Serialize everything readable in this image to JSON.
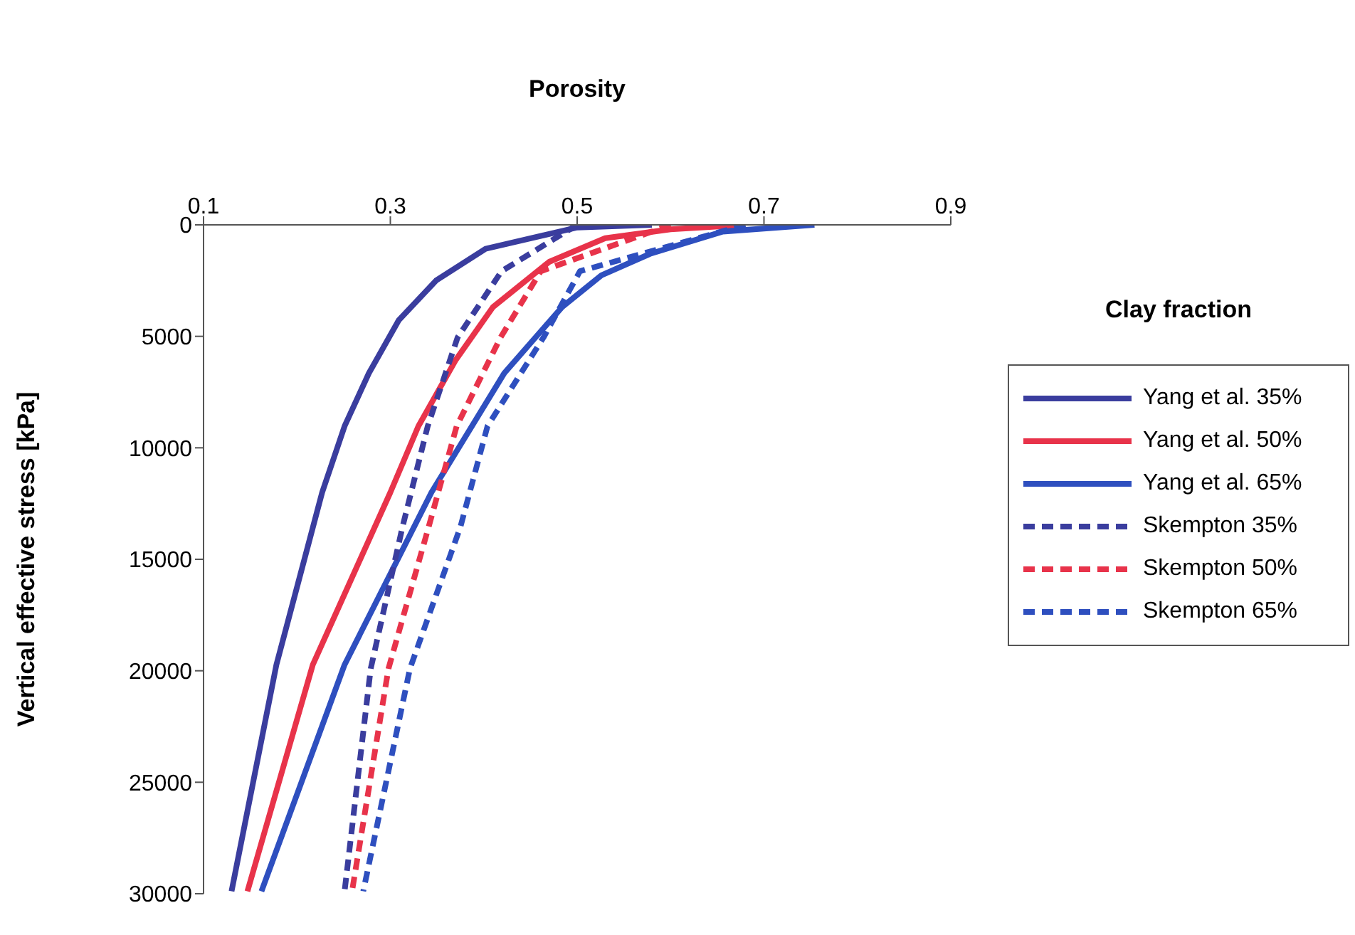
{
  "chart_data": {
    "type": "line",
    "xlabel": "Porosity",
    "ylabel": "Vertical effective stress [kPa]",
    "legend_title": "Clay fraction",
    "xlim": [
      0.1,
      0.9
    ],
    "xticks": [
      0.1,
      0.3,
      0.5,
      0.7,
      0.9
    ],
    "ylim": [
      30000,
      0
    ],
    "yticks": [
      0,
      5000,
      10000,
      15000,
      20000,
      25000,
      30000
    ],
    "legend": "right",
    "grid": false,
    "marker": "none",
    "series": [
      {
        "name": "Yang et al. 35%",
        "color": "#3a3d9e",
        "line_style": "solid",
        "x": [
          0.58,
          0.5,
          0.402,
          0.349,
          0.309,
          0.277,
          0.251,
          0.227,
          0.178,
          0.13
        ],
        "values": [
          0,
          119,
          1070,
          2496,
          4278,
          6655,
          9030,
          12000,
          19730,
          29890
        ]
      },
      {
        "name": "Yang et al. 50%",
        "color": "#e8334a",
        "line_style": "solid",
        "x": [
          0.68,
          0.6,
          0.53,
          0.47,
          0.41,
          0.37,
          0.33,
          0.3,
          0.217,
          0.147
        ],
        "values": [
          0,
          200,
          600,
          1660,
          3680,
          6060,
          9030,
          12000,
          19730,
          29890
        ]
      },
      {
        "name": "Yang et al. 65%",
        "color": "#2e4fbf",
        "line_style": "solid",
        "x": [
          0.754,
          0.656,
          0.578,
          0.526,
          0.484,
          0.422,
          0.344,
          0.251,
          0.162
        ],
        "values": [
          0,
          300,
          1300,
          2260,
          3680,
          6650,
          12000,
          19730,
          29890
        ]
      },
      {
        "name": "Skempton 35%",
        "color": "#3a3d9e",
        "line_style": "dashed",
        "x": [
          0.5,
          0.419,
          0.372,
          0.34,
          0.313,
          0.279,
          0.251
        ],
        "values": [
          0,
          2080,
          5050,
          9030,
          13550,
          19900,
          29890
        ]
      },
      {
        "name": "Skempton 50%",
        "color": "#e8334a",
        "line_style": "dashed",
        "x": [
          0.6,
          0.461,
          0.418,
          0.371,
          0.341,
          0.298,
          0.259
        ],
        "values": [
          0,
          2080,
          5050,
          9030,
          13550,
          19900,
          29890
        ]
      },
      {
        "name": "Skempton 65%",
        "color": "#2e4fbf",
        "line_style": "dashed",
        "x": [
          0.68,
          0.503,
          0.464,
          0.404,
          0.375,
          0.321,
          0.271
        ],
        "values": [
          0,
          2080,
          5050,
          9030,
          13550,
          19900,
          29890
        ]
      }
    ]
  }
}
